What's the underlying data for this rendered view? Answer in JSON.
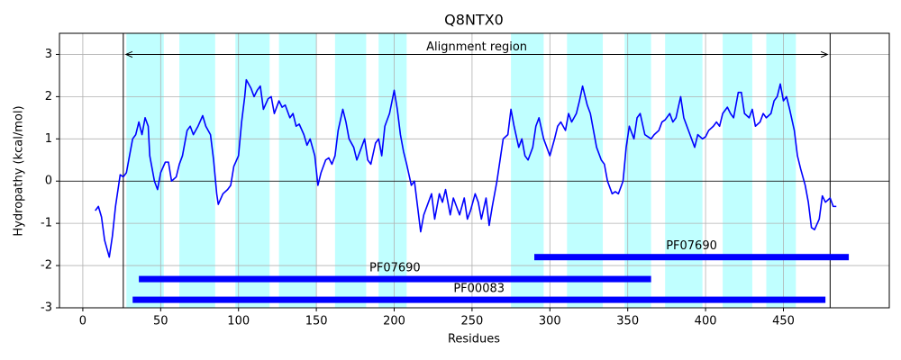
{
  "chart_data": {
    "type": "line",
    "title": "Q8NTX0",
    "x_label": "Residues",
    "y_label": "Hydropathy (kcal/mol)",
    "xlim": [
      -15,
      518
    ],
    "ylim": [
      -3,
      3.5
    ],
    "xticks": [
      0,
      50,
      100,
      150,
      200,
      250,
      300,
      350,
      400,
      450
    ],
    "yticks": [
      -3,
      -2,
      -1,
      0,
      1,
      2,
      3
    ],
    "grid": true,
    "x": [
      8,
      10,
      12,
      14,
      17,
      19,
      21,
      24,
      26,
      28,
      30,
      32,
      34,
      36,
      38,
      40,
      42,
      43,
      46,
      48,
      50,
      53,
      55,
      57,
      60,
      62,
      64,
      67,
      69,
      71,
      74,
      77,
      79,
      82,
      84,
      86,
      87,
      90,
      93,
      95,
      97,
      100,
      102,
      104,
      105,
      108,
      110,
      112,
      114,
      116,
      119,
      121,
      123,
      126,
      128,
      130,
      133,
      135,
      137,
      139,
      142,
      144,
      146,
      149,
      151,
      153,
      156,
      158,
      160,
      162,
      164,
      167,
      169,
      171,
      174,
      176,
      178,
      181,
      183,
      185,
      188,
      190,
      192,
      194,
      197,
      200,
      202,
      204,
      206,
      208,
      211,
      213,
      215,
      217,
      219,
      222,
      224,
      226,
      229,
      231,
      233,
      236,
      238,
      240,
      242,
      245,
      247,
      249,
      252,
      254,
      256,
      259,
      261,
      263,
      266,
      268,
      270,
      273,
      275,
      277,
      280,
      282,
      284,
      286,
      289,
      291,
      293,
      296,
      298,
      300,
      303,
      305,
      307,
      310,
      312,
      314,
      317,
      319,
      321,
      324,
      326,
      328,
      330,
      333,
      335,
      337,
      340,
      342,
      344,
      347,
      349,
      351,
      354,
      356,
      358,
      361,
      363,
      365,
      367,
      370,
      372,
      374,
      377,
      379,
      381,
      384,
      386,
      388,
      391,
      393,
      395,
      398,
      400,
      402,
      405,
      407,
      409,
      411,
      414,
      416,
      418,
      421,
      423,
      425,
      428,
      430,
      432,
      435,
      437,
      439,
      442,
      444,
      446,
      448,
      450,
      452,
      454,
      457,
      459,
      461,
      464,
      466,
      468,
      470,
      473,
      475,
      477,
      480,
      482,
      484
    ],
    "series": [
      {
        "color": "#0000ff",
        "values": [
          -0.7,
          -0.6,
          -0.85,
          -1.4,
          -1.8,
          -1.3,
          -0.6,
          0.15,
          0.1,
          0.2,
          0.6,
          1.0,
          1.1,
          1.4,
          1.1,
          1.5,
          1.3,
          0.6,
          0.0,
          -0.2,
          0.2,
          0.45,
          0.45,
          0.0,
          0.1,
          0.4,
          0.6,
          1.2,
          1.3,
          1.1,
          1.3,
          1.55,
          1.3,
          1.1,
          0.5,
          -0.3,
          -0.55,
          -0.3,
          -0.2,
          -0.1,
          0.35,
          0.6,
          1.4,
          2.0,
          2.4,
          2.2,
          2.0,
          2.15,
          2.25,
          1.7,
          1.95,
          2.0,
          1.6,
          1.9,
          1.75,
          1.8,
          1.5,
          1.6,
          1.3,
          1.35,
          1.1,
          0.85,
          1.0,
          0.6,
          -0.1,
          0.2,
          0.5,
          0.55,
          0.4,
          0.6,
          1.2,
          1.7,
          1.4,
          1.0,
          0.8,
          0.5,
          0.7,
          1.0,
          0.5,
          0.4,
          0.9,
          1.0,
          0.6,
          1.3,
          1.6,
          2.15,
          1.7,
          1.1,
          0.7,
          0.4,
          -0.1,
          0.0,
          -0.6,
          -1.2,
          -0.8,
          -0.5,
          -0.3,
          -0.9,
          -0.3,
          -0.5,
          -0.2,
          -0.8,
          -0.4,
          -0.6,
          -0.8,
          -0.4,
          -0.9,
          -0.7,
          -0.3,
          -0.5,
          -0.9,
          -0.4,
          -1.05,
          -0.6,
          0.0,
          0.5,
          1.0,
          1.1,
          1.7,
          1.3,
          0.8,
          1.0,
          0.6,
          0.5,
          0.8,
          1.3,
          1.5,
          1.0,
          0.8,
          0.6,
          1.0,
          1.3,
          1.4,
          1.2,
          1.6,
          1.4,
          1.6,
          1.9,
          2.25,
          1.8,
          1.6,
          1.2,
          0.8,
          0.5,
          0.4,
          0.0,
          -0.3,
          -0.25,
          -0.3,
          0.0,
          0.8,
          1.3,
          1.0,
          1.5,
          1.6,
          1.1,
          1.05,
          1.0,
          1.1,
          1.2,
          1.4,
          1.45,
          1.6,
          1.4,
          1.5,
          2.0,
          1.5,
          1.3,
          1.0,
          0.8,
          1.1,
          1.0,
          1.05,
          1.2,
          1.3,
          1.4,
          1.3,
          1.6,
          1.75,
          1.6,
          1.5,
          2.1,
          2.1,
          1.6,
          1.5,
          1.7,
          1.3,
          1.4,
          1.6,
          1.5,
          1.6,
          1.9,
          2.0,
          2.3,
          1.9,
          2.0,
          1.7,
          1.2,
          0.6,
          0.3,
          -0.1,
          -0.5,
          -1.1,
          -1.15,
          -0.9,
          -0.35,
          -0.5,
          -0.4,
          -0.6,
          -0.6
        ]
      }
    ],
    "shaded_regions": [
      {
        "start": 28,
        "end": 52
      },
      {
        "start": 62,
        "end": 85
      },
      {
        "start": 98,
        "end": 120
      },
      {
        "start": 126,
        "end": 150
      },
      {
        "start": 162,
        "end": 182
      },
      {
        "start": 190,
        "end": 208
      },
      {
        "start": 275,
        "end": 296
      },
      {
        "start": 311,
        "end": 334
      },
      {
        "start": 348,
        "end": 365
      },
      {
        "start": 374,
        "end": 398
      },
      {
        "start": 411,
        "end": 430
      },
      {
        "start": 439,
        "end": 458
      }
    ],
    "shaded_color": "#c0ffff",
    "alignment_region": {
      "label": "Alignment region",
      "start": 26,
      "end": 480,
      "y": 3
    },
    "domains": [
      {
        "name": "PF07690",
        "start": 290,
        "end": 492,
        "y": -1.8
      },
      {
        "name": "PF07690",
        "start": 36,
        "end": 365,
        "y": -2.32
      },
      {
        "name": "PF00083",
        "start": 32,
        "end": 477,
        "y": -2.81
      }
    ],
    "domain_color": "#0000ff"
  }
}
